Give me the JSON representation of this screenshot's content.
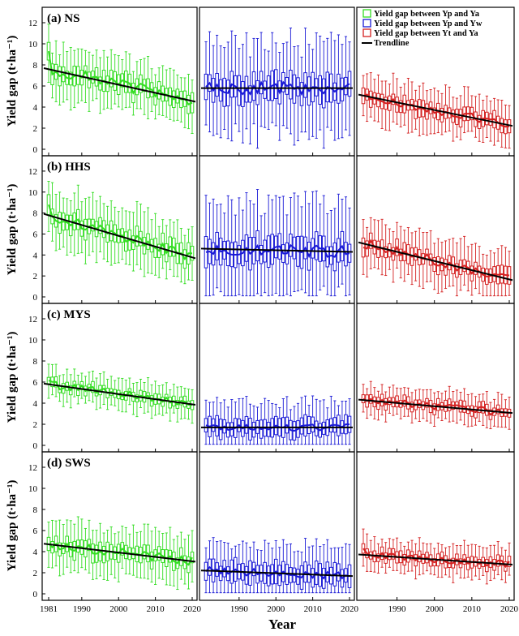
{
  "figure": {
    "ylabel": "Yield gap (t·ha⁻¹)",
    "xlabel": "Year",
    "colors": {
      "green": "#33dd22",
      "blue": "#1a1ad6",
      "red": "#d42020",
      "trend": "#000000"
    },
    "legend": [
      {
        "label": "Yield gap between Yp and Ya",
        "color": "#33dd22",
        "kind": "box"
      },
      {
        "label": "Yield gap between Yp and Yw",
        "color": "#1a1ad6",
        "kind": "box"
      },
      {
        "label": "Yield gap between Yt and Ya",
        "color": "#d42020",
        "kind": "box"
      },
      {
        "label": "Trendline",
        "color": "#000000",
        "kind": "line"
      }
    ]
  },
  "chart_data": [
    {
      "type": "box",
      "panel": "(a) NS",
      "series": "Yield gap between Yp and Ya",
      "x_start": 1981,
      "x_end": 2020,
      "ylim": [
        0,
        13
      ],
      "yticks": [
        0,
        2,
        4,
        6,
        8,
        10,
        12
      ],
      "xticks": [
        1981,
        1990,
        2000,
        2010,
        2020
      ],
      "trend": [
        7.6,
        4.6
      ],
      "spread": 1.6,
      "whisker": 2.8,
      "noise": 0.55,
      "first": 9.3
    },
    {
      "type": "box",
      "panel": "(a) NS",
      "series": "Yield gap between Yp and Yw",
      "x_start": 1981,
      "x_end": 2020,
      "ylim": [
        0,
        13
      ],
      "xticks": [
        1990,
        2000,
        2010,
        2020
      ],
      "trend": [
        5.8,
        5.8
      ],
      "spread": 2.2,
      "whisker": 5.0,
      "noise": 0.6
    },
    {
      "type": "box",
      "panel": "(a) NS",
      "series": "Yield gap between Yt and Ya",
      "x_start": 1981,
      "x_end": 2020,
      "ylim": [
        0,
        13
      ],
      "xticks": [
        1990,
        2000,
        2010,
        2020
      ],
      "trend": [
        5.1,
        2.3
      ],
      "spread": 1.3,
      "whisker": 2.4,
      "noise": 0.4
    },
    {
      "type": "box",
      "panel": "(b) HHS",
      "series": "Yield gap between Yp and Ya",
      "x_start": 1981,
      "x_end": 2020,
      "ylim": [
        0,
        13
      ],
      "yticks": [
        0,
        2,
        4,
        6,
        8,
        10,
        12
      ],
      "xticks": [
        1981,
        1990,
        2000,
        2010,
        2020
      ],
      "trend": [
        7.8,
        3.8
      ],
      "spread": 1.6,
      "whisker": 3.0,
      "noise": 0.5,
      "first": 8.8
    },
    {
      "type": "box",
      "panel": "(b) HHS",
      "series": "Yield gap between Yp and Yw",
      "x_start": 1981,
      "x_end": 2020,
      "ylim": [
        0,
        13
      ],
      "xticks": [
        1990,
        2000,
        2010,
        2020
      ],
      "trend": [
        4.6,
        4.3
      ],
      "spread": 2.4,
      "whisker": 5.0,
      "noise": 0.55
    },
    {
      "type": "box",
      "panel": "(b) HHS",
      "series": "Yield gap between Yt and Ya",
      "x_start": 1981,
      "x_end": 2020,
      "ylim": [
        0,
        13
      ],
      "xticks": [
        1990,
        2000,
        2010,
        2020
      ],
      "trend": [
        5.1,
        1.7
      ],
      "spread": 1.4,
      "whisker": 2.6,
      "noise": 0.45
    },
    {
      "type": "box",
      "panel": "(c) MYS",
      "series": "Yield gap between Yp and Ya",
      "x_start": 1981,
      "x_end": 2020,
      "ylim": [
        0,
        13
      ],
      "yticks": [
        0,
        2,
        4,
        6,
        8,
        10,
        12
      ],
      "xticks": [
        1981,
        1990,
        2000,
        2010,
        2020
      ],
      "trend": [
        5.8,
        3.9
      ],
      "spread": 0.8,
      "whisker": 1.6,
      "noise": 0.4
    },
    {
      "type": "box",
      "panel": "(c) MYS",
      "series": "Yield gap between Yp and Yw",
      "x_start": 1981,
      "x_end": 2020,
      "ylim": [
        0,
        13
      ],
      "xticks": [
        1990,
        2000,
        2010,
        2020
      ],
      "trend": [
        1.7,
        1.7
      ],
      "spread": 1.6,
      "whisker": 2.6,
      "noise": 0.35
    },
    {
      "type": "box",
      "panel": "(c) MYS",
      "series": "Yield gap between Yt and Ya",
      "x_start": 1981,
      "x_end": 2020,
      "ylim": [
        0,
        13
      ],
      "xticks": [
        1990,
        2000,
        2010,
        2020
      ],
      "trend": [
        4.3,
        3.1
      ],
      "spread": 0.9,
      "whisker": 1.6,
      "noise": 0.35
    },
    {
      "type": "box",
      "panel": "(d) SWS",
      "series": "Yield gap between Yp and Ya",
      "x_start": 1981,
      "x_end": 2020,
      "ylim": [
        0,
        13
      ],
      "yticks": [
        0,
        2,
        4,
        6,
        8,
        10,
        12
      ],
      "xticks": [
        1981,
        1990,
        2000,
        2010,
        2020
      ],
      "trend": [
        4.7,
        3.1
      ],
      "spread": 1.4,
      "whisker": 2.6,
      "noise": 0.4
    },
    {
      "type": "box",
      "panel": "(d) SWS",
      "series": "Yield gap between Yp and Yw",
      "x_start": 1981,
      "x_end": 2020,
      "ylim": [
        0,
        13
      ],
      "xticks": [
        1990,
        2000,
        2010,
        2020
      ],
      "trend": [
        2.2,
        1.7
      ],
      "spread": 1.8,
      "whisker": 3.0,
      "noise": 0.35
    },
    {
      "type": "box",
      "panel": "(d) SWS",
      "series": "Yield gap between Yt and Ya",
      "x_start": 1981,
      "x_end": 2020,
      "ylim": [
        0,
        13
      ],
      "xticks": [
        1990,
        2000,
        2010,
        2020
      ],
      "trend": [
        3.7,
        2.8
      ],
      "spread": 0.9,
      "whisker": 1.7,
      "noise": 0.3,
      "first": 4.3
    }
  ]
}
